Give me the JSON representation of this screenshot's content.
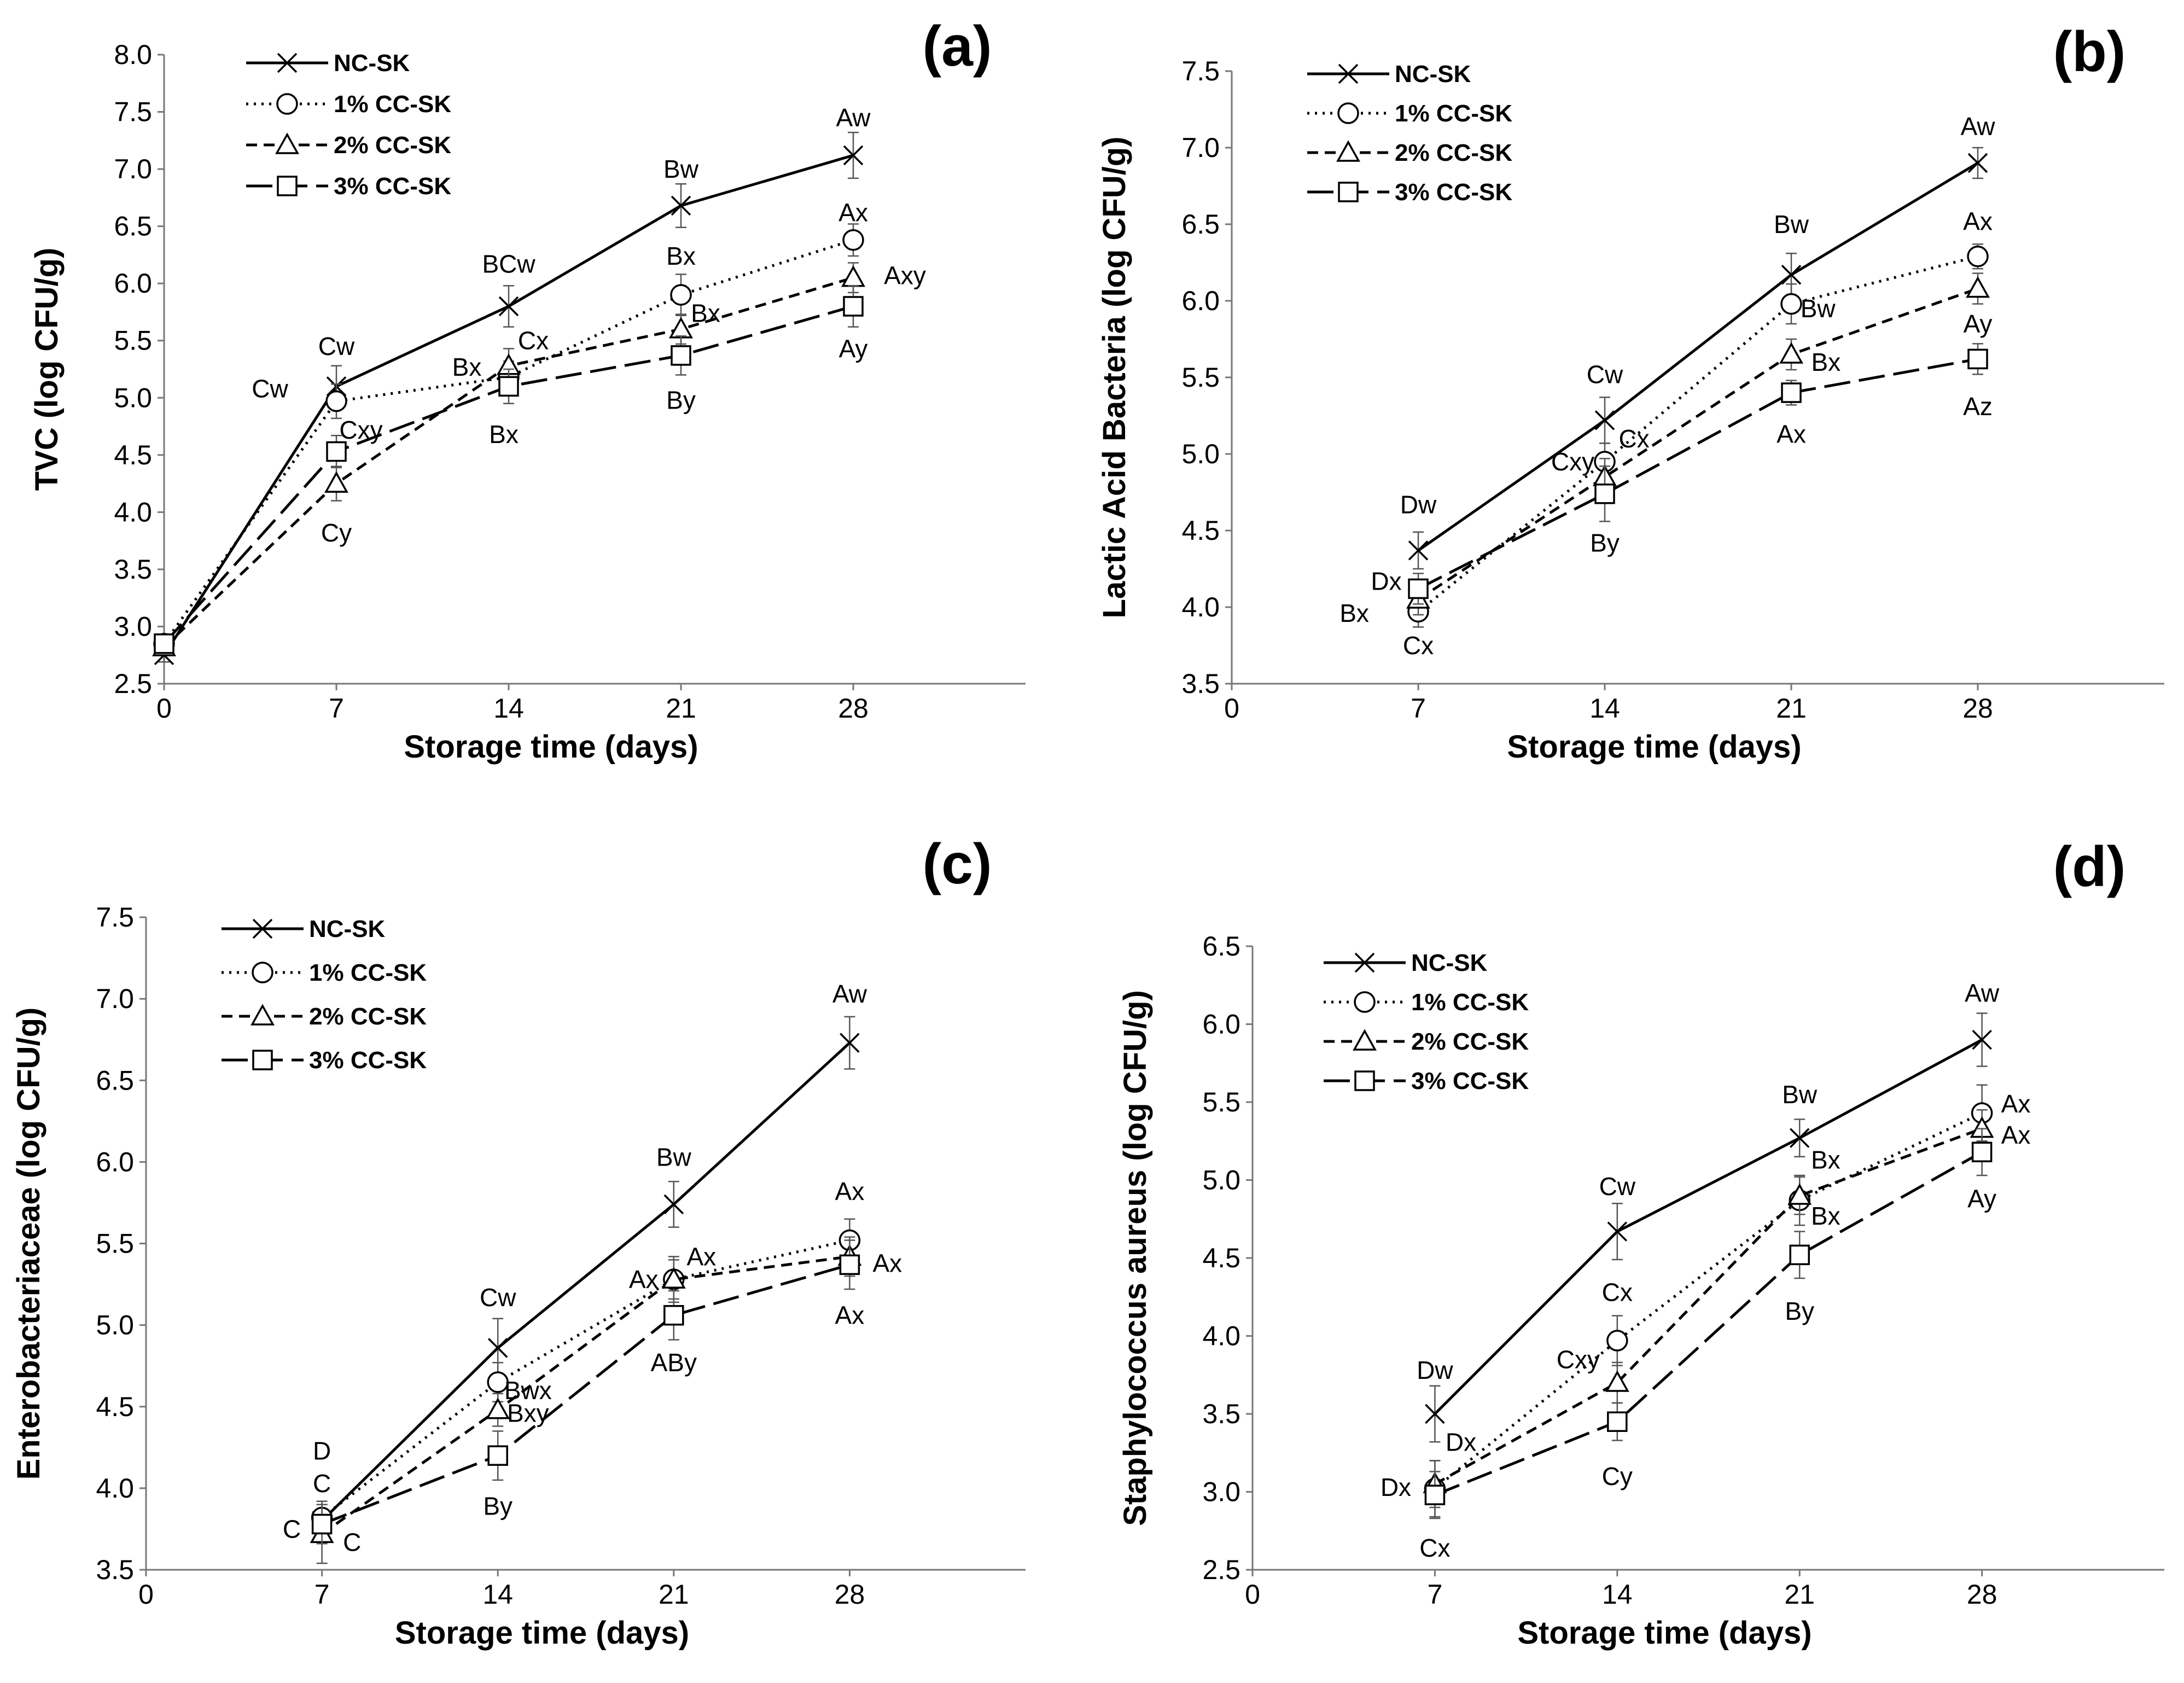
{
  "colors": {
    "line": "#000000",
    "background": "#ffffff"
  },
  "chart_data": [
    {
      "type": "line",
      "panel_label": "(a)",
      "xlabel": "Storage time (days)",
      "ylabel": "TVC (log CFU/g)",
      "xlim": [
        0,
        35
      ],
      "ylim": [
        2.5,
        8.0
      ],
      "x_ticks": [
        0,
        7,
        14,
        21,
        28
      ],
      "y_ticks": [
        "2.5",
        "3.0",
        "3.5",
        "4.0",
        "4.5",
        "5.0",
        "5.5",
        "6.0",
        "6.5",
        "7.0",
        "7.5",
        "8.0"
      ],
      "legend": "top-left",
      "x": [
        0,
        7,
        14,
        21,
        28
      ],
      "series": [
        {
          "name": "NC-SK",
          "marker": "x",
          "dash": "solid",
          "values": [
            2.75,
            5.1,
            5.8,
            6.68,
            7.12
          ],
          "errors": [
            0.06,
            0.18,
            0.18,
            0.19,
            0.2
          ]
        },
        {
          "name": "1% CC-SK",
          "marker": "circle",
          "dash": "dotted",
          "values": [
            2.85,
            4.97,
            5.18,
            5.9,
            6.38
          ],
          "errors": [
            0.06,
            0.15,
            0.14,
            0.18,
            0.14
          ]
        },
        {
          "name": "2% CC-SK",
          "marker": "triangle",
          "dash": "dashed",
          "values": [
            2.82,
            4.25,
            5.28,
            5.6,
            6.05
          ],
          "errors": [
            0.06,
            0.15,
            0.15,
            0.13,
            0.13
          ]
        },
        {
          "name": "3% CC-SK",
          "marker": "square",
          "dash": "longdash",
          "values": [
            2.85,
            4.53,
            5.1,
            5.37,
            5.8
          ],
          "errors": [
            0.06,
            0.14,
            0.15,
            0.17,
            0.18
          ]
        }
      ],
      "annotations": [
        {
          "text": "Aw",
          "x": 28,
          "y": 7.45
        },
        {
          "text": "Bw",
          "x": 21,
          "y": 7.0
        },
        {
          "text": "BCw",
          "x": 14,
          "y": 6.17
        },
        {
          "text": "Cw",
          "x": 7,
          "y": 5.45
        },
        {
          "text": "Cw",
          "x": 4.3,
          "y": 5.08
        },
        {
          "text": "Ax",
          "x": 28,
          "y": 6.62
        },
        {
          "text": "Bx",
          "x": 21,
          "y": 6.24
        },
        {
          "text": "Cx",
          "x": 15,
          "y": 5.5
        },
        {
          "text": "Bx",
          "x": 12.3,
          "y": 5.27
        },
        {
          "text": "Cxy",
          "x": 8,
          "y": 4.72
        },
        {
          "text": "Axy",
          "x": 30.1,
          "y": 6.07
        },
        {
          "text": "Bx",
          "x": 22,
          "y": 5.74
        },
        {
          "text": "Ay",
          "x": 28,
          "y": 5.43
        },
        {
          "text": "By",
          "x": 21,
          "y": 4.98
        },
        {
          "text": "Bx",
          "x": 13.8,
          "y": 4.68
        },
        {
          "text": "Cy",
          "x": 7,
          "y": 3.82
        }
      ]
    },
    {
      "type": "line",
      "panel_label": "(b)",
      "xlabel": "Storage time (days)",
      "ylabel": "Lactic Acid Bacteria (log CFU/g)",
      "xlim": [
        0,
        35
      ],
      "ylim": [
        3.5,
        7.5
      ],
      "x_ticks": [
        0,
        7,
        14,
        21,
        28
      ],
      "y_ticks": [
        "3.5",
        "4.0",
        "4.5",
        "5.0",
        "5.5",
        "6.0",
        "6.5",
        "7.0",
        "7.5"
      ],
      "legend": "top-left",
      "x": [
        7,
        14,
        21,
        28
      ],
      "series": [
        {
          "name": "NC-SK",
          "marker": "x",
          "dash": "solid",
          "values": [
            4.37,
            5.22,
            6.17,
            6.9
          ],
          "errors": [
            0.12,
            0.15,
            0.14,
            0.1
          ]
        },
        {
          "name": "1% CC-SK",
          "marker": "circle",
          "dash": "dotted",
          "values": [
            3.97,
            4.95,
            5.98,
            6.29
          ],
          "errors": [
            0.1,
            0.12,
            0.13,
            0.08
          ]
        },
        {
          "name": "2% CC-SK",
          "marker": "triangle",
          "dash": "dashed",
          "values": [
            4.05,
            4.85,
            5.65,
            6.08
          ],
          "errors": [
            0.1,
            0.12,
            0.1,
            0.1
          ]
        },
        {
          "name": "3% CC-SK",
          "marker": "square",
          "dash": "longdash",
          "values": [
            4.12,
            4.74,
            5.4,
            5.62
          ],
          "errors": [
            0.1,
            0.18,
            0.08,
            0.1
          ]
        }
      ],
      "annotations": [
        {
          "text": "Aw",
          "x": 28,
          "y": 7.14
        },
        {
          "text": "Bw",
          "x": 21,
          "y": 6.5
        },
        {
          "text": "Cw",
          "x": 14,
          "y": 5.52
        },
        {
          "text": "Dw",
          "x": 7,
          "y": 4.67
        },
        {
          "text": "Ax",
          "x": 28,
          "y": 6.52
        },
        {
          "text": "Bw",
          "x": 22,
          "y": 5.95
        },
        {
          "text": "Cx",
          "x": 15.1,
          "y": 5.1
        },
        {
          "text": "Cxy",
          "x": 12.8,
          "y": 4.95
        },
        {
          "text": "Ay",
          "x": 28,
          "y": 5.85
        },
        {
          "text": "Bx",
          "x": 22.3,
          "y": 5.6
        },
        {
          "text": "Az",
          "x": 28,
          "y": 5.31
        },
        {
          "text": "Ax",
          "x": 21,
          "y": 5.13
        },
        {
          "text": "By",
          "x": 14,
          "y": 4.42
        },
        {
          "text": "Dx",
          "x": 5.8,
          "y": 4.17
        },
        {
          "text": "Bx",
          "x": 4.6,
          "y": 3.96
        },
        {
          "text": "Cx",
          "x": 7,
          "y": 3.75
        }
      ]
    },
    {
      "type": "line",
      "panel_label": "(c)",
      "xlabel": "Storage time (days)",
      "ylabel": "Enterobacteriaceae (log CFU/g)",
      "xlim": [
        0,
        35
      ],
      "ylim": [
        3.5,
        7.5
      ],
      "x_ticks": [
        0,
        7,
        14,
        21,
        28
      ],
      "y_ticks": [
        "3.5",
        "4.0",
        "4.5",
        "5.0",
        "5.5",
        "6.0",
        "6.5",
        "7.0",
        "7.5"
      ],
      "legend": "top-left",
      "x": [
        7,
        14,
        21,
        28
      ],
      "series": [
        {
          "name": "NC-SK",
          "marker": "x",
          "dash": "solid",
          "values": [
            3.8,
            4.86,
            5.74,
            6.73
          ],
          "errors": [
            0.1,
            0.18,
            0.14,
            0.16
          ]
        },
        {
          "name": "1% CC-SK",
          "marker": "circle",
          "dash": "dotted",
          "values": [
            3.82,
            4.65,
            5.28,
            5.52
          ],
          "errors": [
            0.1,
            0.12,
            0.14,
            0.13
          ]
        },
        {
          "name": "2% CC-SK",
          "marker": "triangle",
          "dash": "dashed",
          "values": [
            3.72,
            4.48,
            5.28,
            5.42
          ],
          "errors": [
            0.18,
            0.1,
            0.12,
            0.12
          ]
        },
        {
          "name": "3% CC-SK",
          "marker": "square",
          "dash": "longdash",
          "values": [
            3.78,
            4.2,
            5.06,
            5.37
          ],
          "errors": [
            0.12,
            0.15,
            0.15,
            0.15
          ]
        }
      ],
      "annotations": [
        {
          "text": "Aw",
          "x": 28,
          "y": 7.03
        },
        {
          "text": "Bw",
          "x": 21,
          "y": 6.03
        },
        {
          "text": "Cw",
          "x": 14,
          "y": 5.17
        },
        {
          "text": "D",
          "x": 7,
          "y": 4.23
        },
        {
          "text": "C",
          "x": 7,
          "y": 4.03
        },
        {
          "text": "Ax",
          "x": 28,
          "y": 5.82
        },
        {
          "text": "Bwx",
          "x": 15.2,
          "y": 4.6
        },
        {
          "text": "Ax",
          "x": 22.1,
          "y": 5.42
        },
        {
          "text": "Ax",
          "x": 19.8,
          "y": 5.28
        },
        {
          "text": "Ax",
          "x": 29.5,
          "y": 5.38
        },
        {
          "text": "Bxy",
          "x": 15.2,
          "y": 4.46
        },
        {
          "text": "ABy",
          "x": 21,
          "y": 4.77
        },
        {
          "text": "Ax",
          "x": 28,
          "y": 5.06
        },
        {
          "text": "By",
          "x": 14,
          "y": 3.89
        },
        {
          "text": "C",
          "x": 5.8,
          "y": 3.75
        },
        {
          "text": "C",
          "x": 8.2,
          "y": 3.67
        }
      ]
    },
    {
      "type": "line",
      "panel_label": "(d)",
      "xlabel": "Storage time (days)",
      "ylabel": "Staphylococcus aureus (log CFU/g)",
      "xlim": [
        0,
        35
      ],
      "ylim": [
        2.5,
        6.5
      ],
      "x_ticks": [
        0,
        7,
        14,
        21,
        28
      ],
      "y_ticks": [
        "2.5",
        "3.0",
        "3.5",
        "4.0",
        "4.5",
        "5.0",
        "5.5",
        "6.0",
        "6.5"
      ],
      "legend": "top-left",
      "x": [
        7,
        14,
        21,
        28
      ],
      "series": [
        {
          "name": "NC-SK",
          "marker": "x",
          "dash": "solid",
          "values": [
            3.5,
            4.67,
            5.27,
            5.9
          ],
          "errors": [
            0.18,
            0.18,
            0.12,
            0.17
          ]
        },
        {
          "name": "1% CC-SK",
          "marker": "circle",
          "dash": "dotted",
          "values": [
            3.02,
            3.97,
            4.87,
            5.43
          ],
          "errors": [
            0.18,
            0.16,
            0.16,
            0.18
          ]
        },
        {
          "name": "2% CC-SK",
          "marker": "triangle",
          "dash": "dashed",
          "values": [
            3.05,
            3.7,
            4.9,
            5.33
          ],
          "errors": [
            0.15,
            0.13,
            0.12,
            0.12
          ]
        },
        {
          "name": "3% CC-SK",
          "marker": "square",
          "dash": "longdash",
          "values": [
            2.98,
            3.45,
            4.52,
            5.18
          ],
          "errors": [
            0.15,
            0.12,
            0.15,
            0.15
          ]
        }
      ],
      "annotations": [
        {
          "text": "Aw",
          "x": 28,
          "y": 6.2
        },
        {
          "text": "Bw",
          "x": 21,
          "y": 5.55
        },
        {
          "text": "Cw",
          "x": 14,
          "y": 4.96
        },
        {
          "text": "Dw",
          "x": 7,
          "y": 3.78
        },
        {
          "text": "Ax",
          "x": 29.3,
          "y": 5.49
        },
        {
          "text": "Bx",
          "x": 22,
          "y": 5.13
        },
        {
          "text": "Cx",
          "x": 14,
          "y": 4.28
        },
        {
          "text": "Dx",
          "x": 8,
          "y": 3.32
        },
        {
          "text": "Ax",
          "x": 29.3,
          "y": 5.29
        },
        {
          "text": "Bx",
          "x": 22,
          "y": 4.77
        },
        {
          "text": "Cxy",
          "x": 12.5,
          "y": 3.85
        },
        {
          "text": "Ay",
          "x": 28,
          "y": 4.88
        },
        {
          "text": "By",
          "x": 21,
          "y": 4.16
        },
        {
          "text": "Cy",
          "x": 14,
          "y": 3.1
        },
        {
          "text": "Dx",
          "x": 5.5,
          "y": 3.03
        },
        {
          "text": "Cx",
          "x": 7,
          "y": 2.64
        }
      ]
    }
  ]
}
